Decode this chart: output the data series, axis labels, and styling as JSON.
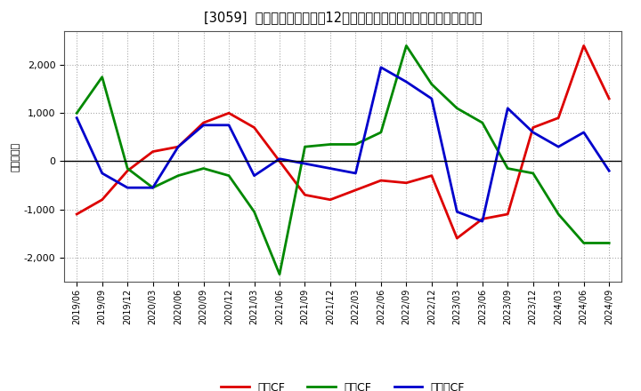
{
  "title": "[3059]  キャッシュフローの12か月移動合計の対前年同期増減額の推移",
  "ylabel": "（百万円）",
  "background_color": "#ffffff",
  "plot_bg_color": "#ffffff",
  "grid_color": "#aaaaaa",
  "dates": [
    "2019/06",
    "2019/09",
    "2019/12",
    "2020/03",
    "2020/06",
    "2020/09",
    "2020/12",
    "2021/03",
    "2021/06",
    "2021/09",
    "2021/12",
    "2022/03",
    "2022/06",
    "2022/09",
    "2022/12",
    "2023/03",
    "2023/06",
    "2023/09",
    "2023/12",
    "2024/03",
    "2024/06",
    "2024/09"
  ],
  "eigyo_cf": [
    -1100,
    -800,
    -200,
    200,
    300,
    800,
    1000,
    700,
    0,
    -700,
    -800,
    -600,
    -400,
    -450,
    -300,
    -1600,
    -1200,
    -1100,
    700,
    900,
    2400,
    1300
  ],
  "toshi_cf": [
    1000,
    1750,
    -150,
    -550,
    -300,
    -150,
    -300,
    -1050,
    -2350,
    300,
    350,
    350,
    600,
    2400,
    1600,
    1100,
    800,
    -150,
    -250,
    -1100,
    -1700,
    -1700
  ],
  "free_cf": [
    900,
    -250,
    -550,
    -550,
    300,
    750,
    750,
    -300,
    50,
    -50,
    -150,
    -250,
    1950,
    1650,
    1300,
    -1050,
    -1250,
    1100,
    600,
    300,
    600,
    -200
  ],
  "eigyo_color": "#dd0000",
  "toshi_color": "#008800",
  "free_color": "#0000cc",
  "ylim": [
    -2500,
    2700
  ],
  "yticks": [
    -2000,
    -1000,
    0,
    1000,
    2000
  ],
  "line_width": 2.0,
  "legend_labels": [
    "営業CF",
    "投賄CF",
    "フリーCF"
  ]
}
